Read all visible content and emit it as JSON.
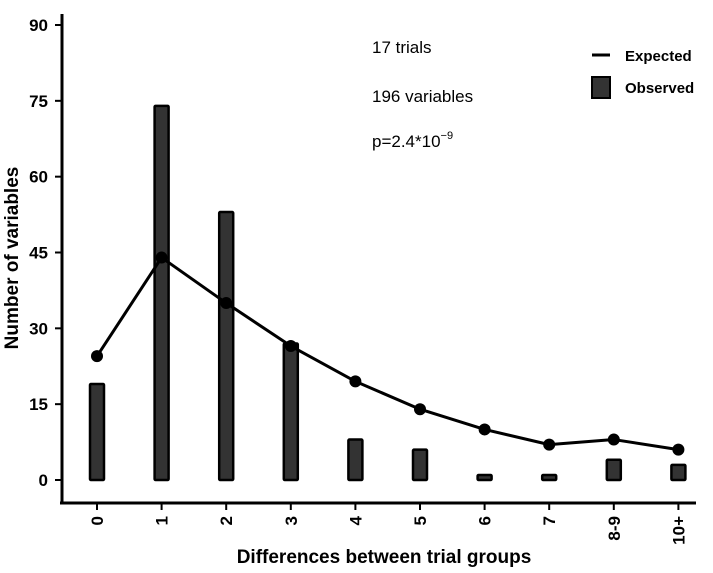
{
  "chart_data": {
    "type": "bar",
    "categories": [
      "0",
      "1",
      "2",
      "3",
      "4",
      "5",
      "6",
      "7",
      "8-9",
      "10+"
    ],
    "series": [
      {
        "name": "Observed",
        "kind": "bar",
        "values": [
          19,
          74,
          53,
          27,
          8,
          6,
          1,
          1,
          4,
          3
        ],
        "color": "#333333"
      },
      {
        "name": "Expected",
        "kind": "line",
        "values": [
          24.5,
          44,
          35,
          26.5,
          19.5,
          14,
          10,
          7,
          8,
          6
        ],
        "color": "#000000"
      }
    ],
    "xlabel": "Differences between trial groups",
    "ylabel": "Number of variables",
    "ylim": [
      0,
      90
    ],
    "yticks": [
      "0",
      "15",
      "30",
      "45",
      "60",
      "75",
      "90"
    ],
    "annotations": {
      "trials": "17 trials",
      "variables": "196 variables",
      "pvalue_base": "p=2.4*10",
      "pvalue_exp": "−9"
    },
    "legend": {
      "position": "top-right",
      "expected": "Expected",
      "observed": "Observed"
    }
  }
}
